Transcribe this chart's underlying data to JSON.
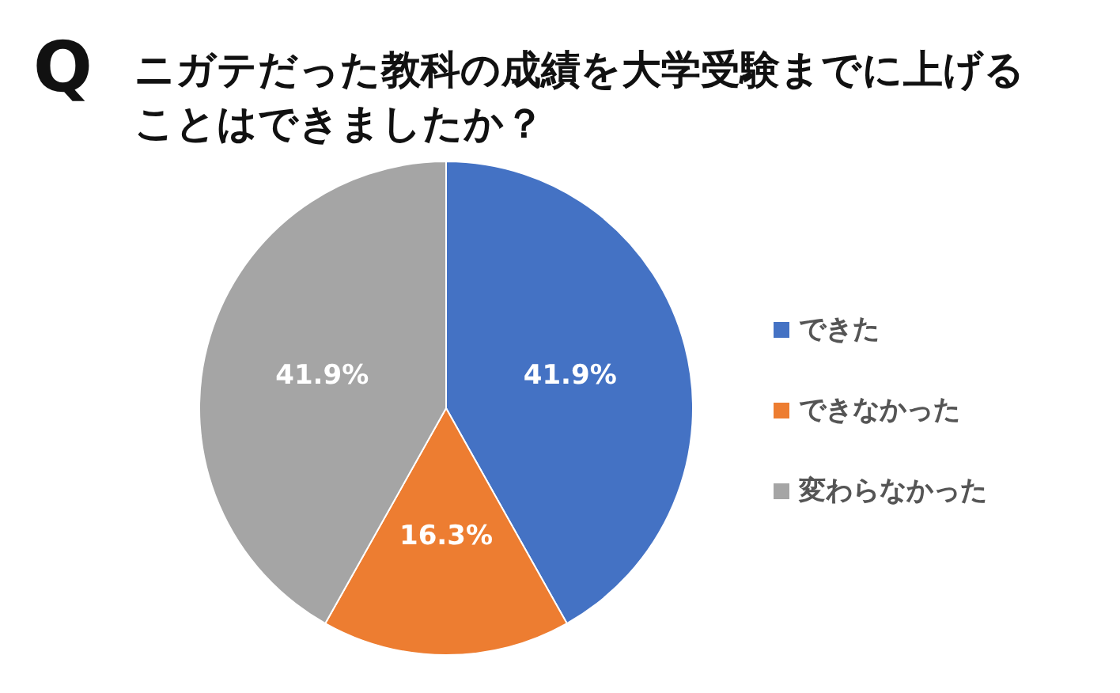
{
  "chart_data": {
    "type": "pie",
    "title": "Q",
    "subtitle": "ニガテだった教科の成績を大学受験までに上げることはできましたか？",
    "categories": [
      "できた",
      "できなかった",
      "変わらなかった"
    ],
    "values": [
      41.9,
      16.3,
      41.9
    ],
    "colors": [
      "#4472c4",
      "#ed7d31",
      "#a5a5a5"
    ],
    "value_labels": [
      "41.9%",
      "16.3%",
      "41.9%"
    ],
    "legend": "right"
  }
}
